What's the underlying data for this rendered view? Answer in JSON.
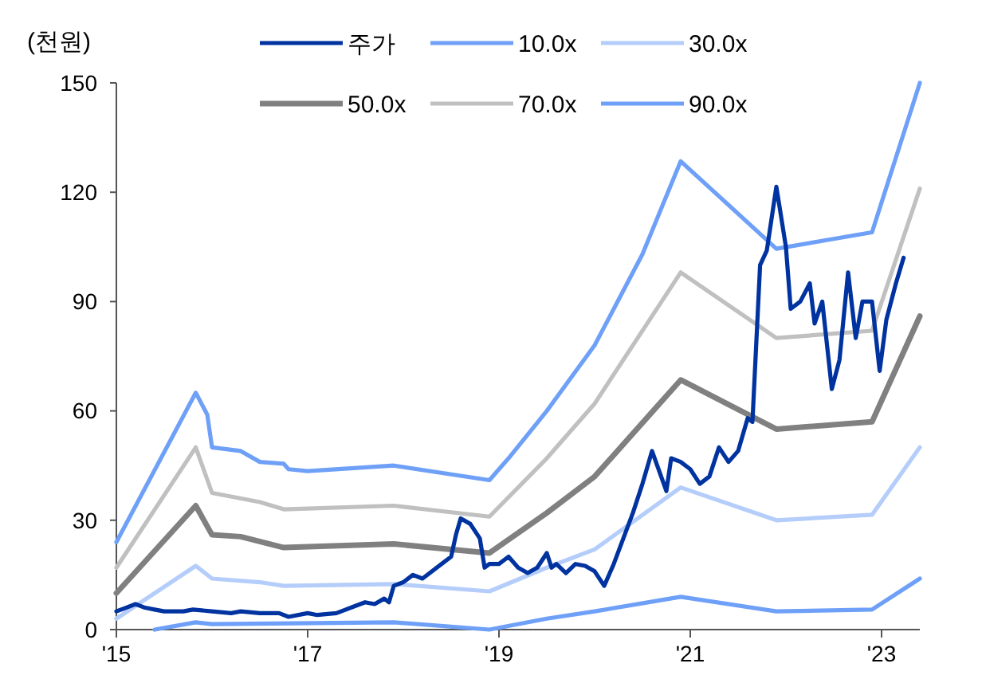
{
  "chart_data": {
    "type": "line",
    "ylabel": "(천원)",
    "legend": "top",
    "grid": false,
    "xlim": [
      2015,
      2023.4
    ],
    "xticks": [
      {
        "value": 2015,
        "label": "'15"
      },
      {
        "value": 2017,
        "label": "'17"
      },
      {
        "value": 2019,
        "label": "'19"
      },
      {
        "value": 2021,
        "label": "'21"
      },
      {
        "value": 2023,
        "label": "'23"
      }
    ],
    "ylim": [
      0,
      150
    ],
    "yticks": [
      0,
      30,
      60,
      90,
      120,
      150
    ],
    "series": [
      {
        "name": "주가",
        "color": "#0033a0",
        "x": [
          2015,
          2015.1,
          2015.2,
          2015.3,
          2015.4,
          2015.5,
          2015.7,
          2015.8,
          2016,
          2016.2,
          2016.3,
          2016.5,
          2016.7,
          2016.8,
          2017,
          2017.1,
          2017.3,
          2017.5,
          2017.6,
          2017.7,
          2017.8,
          2017.85,
          2017.9,
          2018,
          2018.1,
          2018.2,
          2018.4,
          2018.5,
          2018.55,
          2018.6,
          2018.7,
          2018.8,
          2018.85,
          2018.9,
          2019,
          2019.1,
          2019.2,
          2019.3,
          2019.4,
          2019.5,
          2019.55,
          2019.6,
          2019.7,
          2019.8,
          2019.9,
          2020,
          2020.1,
          2020.2,
          2020.3,
          2020.4,
          2020.5,
          2020.6,
          2020.75,
          2020.8,
          2020.9,
          2021,
          2021.1,
          2021.2,
          2021.3,
          2021.4,
          2021.5,
          2021.6,
          2021.65,
          2021.73,
          2021.8,
          2021.9,
          2022,
          2022.05,
          2022.15,
          2022.25,
          2022.3,
          2022.38,
          2022.48,
          2022.56,
          2022.65,
          2022.73,
          2022.8,
          2022.9,
          2022.98,
          2023.05,
          2023.15,
          2023.23
        ],
        "values": [
          5,
          6,
          7,
          6,
          5.5,
          5,
          5,
          5.5,
          5,
          4.5,
          5,
          4.5,
          4.5,
          3.5,
          4.5,
          4,
          4.5,
          6.5,
          7.5,
          7,
          8.5,
          7.5,
          12,
          13,
          15,
          14,
          18,
          20,
          26,
          30.5,
          29,
          25,
          17,
          18,
          18,
          20,
          17,
          15.5,
          17,
          21,
          17,
          18,
          15.5,
          18,
          17.5,
          16,
          12,
          18,
          25,
          32,
          40,
          49,
          38,
          47,
          46,
          44,
          40,
          42,
          50,
          46,
          49,
          58,
          57,
          100,
          104,
          121.5,
          105,
          88,
          90,
          95,
          84,
          90,
          66,
          74,
          98,
          80,
          90,
          90,
          71,
          85,
          95,
          102
        ]
      },
      {
        "name": "10.0x",
        "color": "#6fa0f8",
        "x": [
          2015.4,
          2015.83,
          2016,
          2017.9,
          2018.9,
          2019.5,
          2020,
          2020.9,
          2021.9,
          2022.9,
          2023.4
        ],
        "values": [
          0,
          2,
          1.5,
          2,
          0,
          3,
          5,
          9,
          5,
          5.5,
          14
        ]
      },
      {
        "name": "30.0x",
        "color": "#b4cdfa",
        "x": [
          2015,
          2015.83,
          2016,
          2016.5,
          2016.75,
          2017.9,
          2018.9,
          2019.5,
          2020,
          2020.9,
          2021.9,
          2022.9,
          2023.4
        ],
        "values": [
          3,
          17.5,
          14,
          13,
          12,
          12.5,
          10.5,
          17,
          22,
          39,
          30,
          31.5,
          50
        ]
      },
      {
        "name": "50.0x",
        "color": "#808080",
        "x": [
          2015,
          2015.83,
          2016,
          2016.3,
          2016.75,
          2017.9,
          2018.9,
          2019.5,
          2020,
          2020.9,
          2021.9,
          2022.9,
          2023.4
        ],
        "values": [
          10,
          34,
          26,
          25.5,
          22.5,
          23.5,
          21,
          32,
          42,
          68.5,
          55,
          57,
          86
        ]
      },
      {
        "name": "70.0x",
        "color": "#c0c0c0",
        "x": [
          2015,
          2015.83,
          2016,
          2016.5,
          2016.75,
          2017.9,
          2018.9,
          2019.5,
          2020,
          2020.9,
          2021.9,
          2022.9,
          2023.4
        ],
        "values": [
          17,
          50,
          37.5,
          35,
          33,
          34,
          31,
          47,
          62,
          98,
          80,
          82,
          121
        ]
      },
      {
        "name": "90.0x",
        "color": "#6fa0f8",
        "x": [
          2015,
          2015.83,
          2015.95,
          2016,
          2016.3,
          2016.5,
          2016.75,
          2016.8,
          2017,
          2017.9,
          2018.9,
          2019.1,
          2019.5,
          2020,
          2020.5,
          2020.9,
          2021.9,
          2022.9,
          2023.4
        ],
        "values": [
          24,
          65,
          59,
          50,
          49,
          46,
          45.5,
          44,
          43.5,
          45,
          41,
          47,
          60,
          78,
          103,
          128.5,
          104.5,
          109,
          150
        ]
      }
    ]
  }
}
